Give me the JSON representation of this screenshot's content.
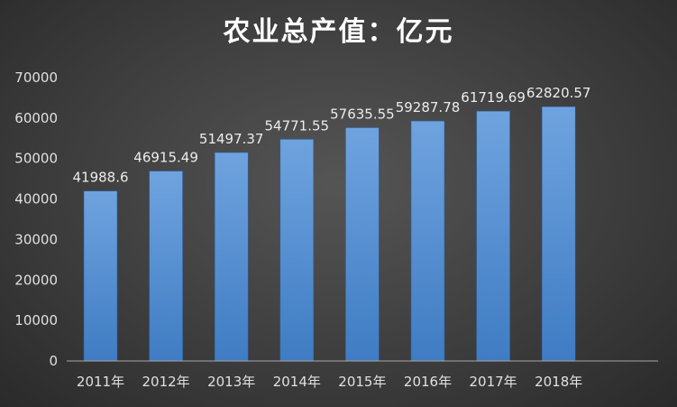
{
  "chart_data": {
    "type": "bar",
    "title": "农业总产值：亿元",
    "categories": [
      "2011年",
      "2012年",
      "2013年",
      "2014年",
      "2015年",
      "2016年",
      "2017年",
      "2018年"
    ],
    "values": [
      41988.6,
      46915.49,
      51497.37,
      54771.55,
      57635.55,
      59287.78,
      61719.69,
      62820.57
    ],
    "data_labels": [
      "41988.6",
      "46915.49",
      "51497.37",
      "54771.55",
      "57635.55",
      "59287.78",
      "61719.69",
      "62820.57"
    ],
    "yticks": [
      "0",
      "10000",
      "20000",
      "30000",
      "40000",
      "50000",
      "60000",
      "70000"
    ],
    "ylim": [
      0,
      70000
    ],
    "grid": false,
    "colors": {
      "bar_top": "#6fa3df",
      "bar_bottom": "#3f7cc3",
      "axis": "#a6a6a6"
    }
  }
}
